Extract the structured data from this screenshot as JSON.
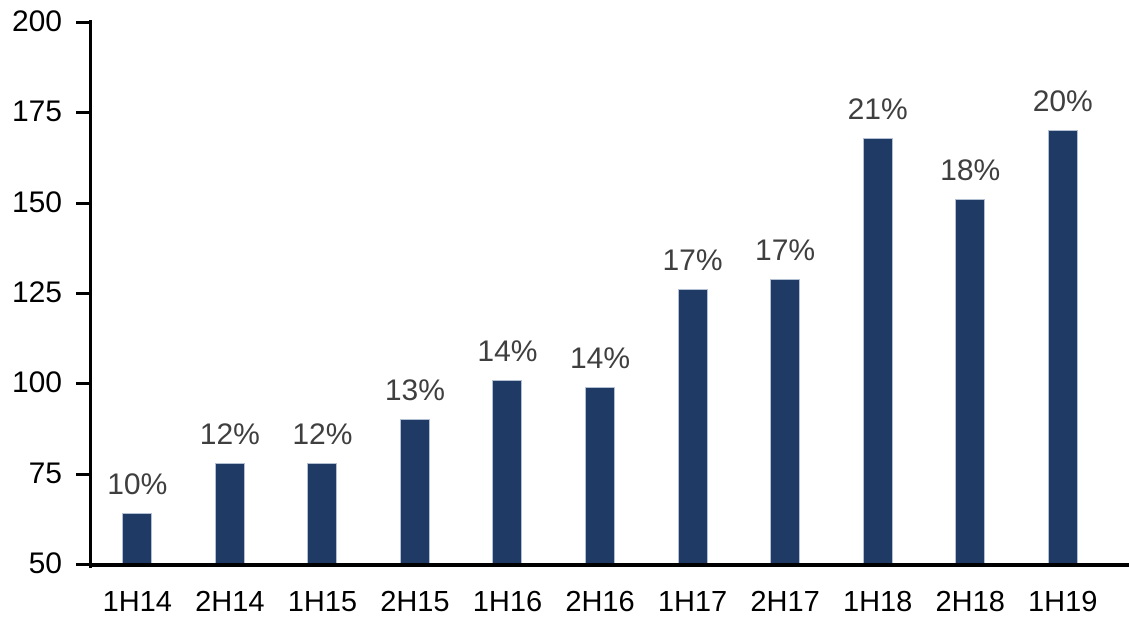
{
  "chart_data": {
    "type": "bar",
    "title": "",
    "xlabel": "",
    "ylabel": "",
    "categories": [
      "1H14",
      "2H14",
      "1H15",
      "2H15",
      "1H16",
      "2H16",
      "1H17",
      "2H17",
      "1H18",
      "2H18",
      "1H19"
    ],
    "values": [
      64,
      78,
      78,
      90,
      101,
      99,
      126,
      129,
      168,
      151,
      170
    ],
    "data_labels": [
      "10%",
      "12%",
      "12%",
      "13%",
      "14%",
      "14%",
      "17%",
      "17%",
      "21%",
      "18%",
      "20%"
    ],
    "yticks": [
      50,
      75,
      100,
      125,
      150,
      175,
      200
    ],
    "ylim": [
      50,
      200
    ],
    "grid": "off",
    "legend": "none",
    "bar_color": "#1f3a64",
    "bar_border_color": "#b3c0d3",
    "data_label_color": "#3f3f3f",
    "axis_color": "#000000"
  }
}
